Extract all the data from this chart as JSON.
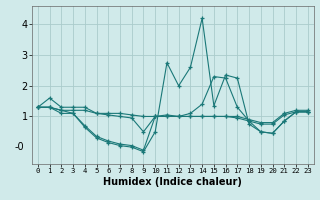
{
  "xlabel": "Humidex (Indice chaleur)",
  "background_color": "#d0eaea",
  "grid_color": "#aacccc",
  "line_color": "#1a7878",
  "xlim": [
    -0.5,
    23.5
  ],
  "ylim": [
    -0.55,
    4.6
  ],
  "xtick_vals": [
    0,
    1,
    2,
    3,
    4,
    5,
    6,
    7,
    8,
    9,
    10,
    11,
    12,
    13,
    14,
    15,
    16,
    17,
    18,
    19,
    20,
    21,
    22,
    23
  ],
  "ytick_vals": [
    0,
    1,
    2,
    3,
    4
  ],
  "ytick_labels": [
    "-0",
    "1",
    "2",
    "3",
    "4"
  ],
  "series": [
    [
      1.3,
      1.6,
      1.3,
      1.3,
      1.3,
      1.1,
      1.1,
      1.1,
      1.05,
      1.0,
      1.0,
      1.0,
      1.0,
      1.0,
      1.0,
      1.0,
      1.0,
      1.0,
      0.9,
      0.8,
      0.8,
      1.1,
      1.2,
      1.2
    ],
    [
      1.3,
      1.3,
      1.2,
      1.2,
      1.2,
      1.1,
      1.05,
      1.0,
      0.95,
      0.5,
      1.0,
      1.0,
      1.0,
      1.0,
      1.0,
      1.0,
      1.0,
      0.95,
      0.85,
      0.75,
      0.75,
      1.05,
      1.15,
      1.15
    ],
    [
      1.3,
      1.3,
      1.2,
      1.1,
      0.7,
      0.35,
      0.2,
      0.1,
      0.05,
      -0.1,
      1.0,
      1.05,
      1.0,
      1.1,
      1.4,
      2.3,
      2.25,
      1.3,
      0.85,
      0.5,
      0.45,
      0.85,
      1.15,
      1.15
    ],
    [
      1.3,
      1.3,
      1.1,
      1.1,
      0.65,
      0.3,
      0.15,
      0.05,
      0.0,
      -0.15,
      0.5,
      2.75,
      2.0,
      2.6,
      4.2,
      1.35,
      2.35,
      2.25,
      0.75,
      0.5,
      0.45,
      0.85,
      1.15,
      1.15
    ]
  ]
}
